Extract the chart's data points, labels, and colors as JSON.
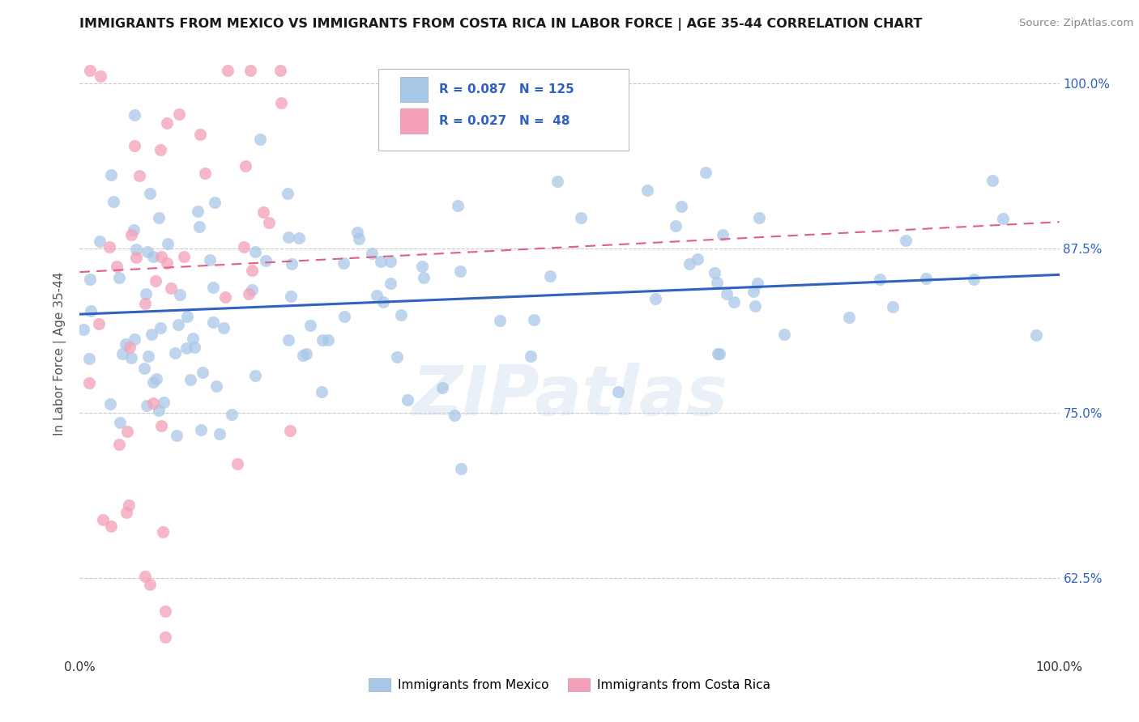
{
  "title": "IMMIGRANTS FROM MEXICO VS IMMIGRANTS FROM COSTA RICA IN LABOR FORCE | AGE 35-44 CORRELATION CHART",
  "source": "Source: ZipAtlas.com",
  "ylabel": "In Labor Force | Age 35-44",
  "xlim": [
    0.0,
    1.0
  ],
  "ylim": [
    0.565,
    1.025
  ],
  "x_ticks": [
    0.0,
    1.0
  ],
  "x_tick_labels": [
    "0.0%",
    "100.0%"
  ],
  "y_ticks": [
    0.625,
    0.75,
    0.875,
    1.0
  ],
  "y_tick_labels": [
    "62.5%",
    "75.0%",
    "87.5%",
    "100.0%"
  ],
  "mexico_color": "#a8c8e8",
  "costa_rica_color": "#f4a0b8",
  "mexico_line_color": "#3060c0",
  "costa_rica_line_color": "#e06080",
  "R_mexico": 0.087,
  "N_mexico": 125,
  "R_costa_rica": 0.027,
  "N_costa_rica": 48,
  "watermark": "ZIPatlas",
  "legend_label_mexico": "Immigrants from Mexico",
  "legend_label_costa_rica": "Immigrants from Costa Rica",
  "mexico_line_start_y": 0.825,
  "mexico_line_end_y": 0.855,
  "costa_rica_line_start_y": 0.857,
  "costa_rica_line_end_y": 0.895
}
